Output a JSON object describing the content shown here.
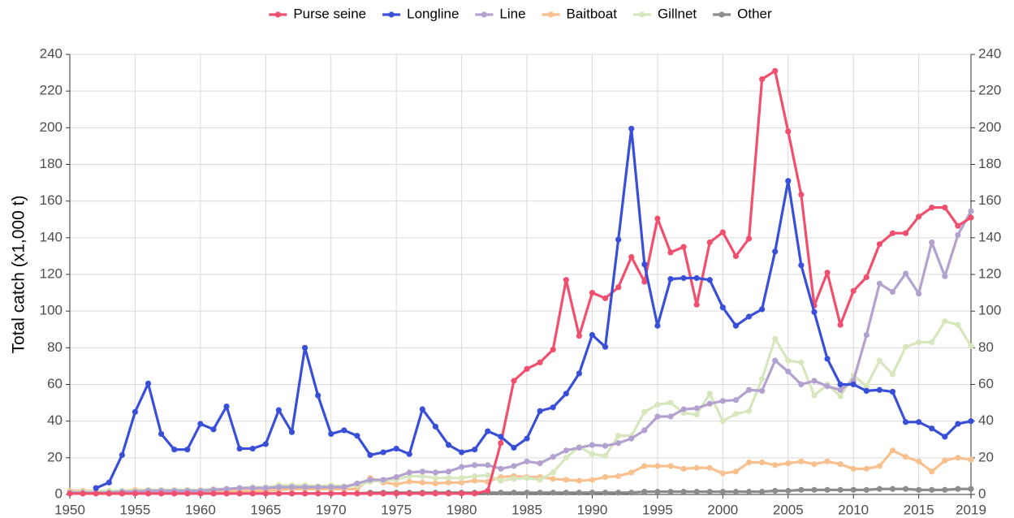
{
  "chart_data": {
    "type": "line",
    "y_label": "Total catch (x1,000 t)",
    "x": [
      1950,
      1951,
      1952,
      1953,
      1954,
      1955,
      1956,
      1957,
      1958,
      1959,
      1960,
      1961,
      1962,
      1963,
      1964,
      1965,
      1966,
      1967,
      1968,
      1969,
      1970,
      1971,
      1972,
      1973,
      1974,
      1975,
      1976,
      1977,
      1978,
      1979,
      1980,
      1981,
      1982,
      1983,
      1984,
      1985,
      1986,
      1987,
      1988,
      1989,
      1990,
      1991,
      1992,
      1993,
      1994,
      1995,
      1996,
      1997,
      1998,
      1999,
      2000,
      2001,
      2002,
      2003,
      2004,
      2005,
      2006,
      2007,
      2008,
      2009,
      2010,
      2011,
      2012,
      2013,
      2014,
      2015,
      2016,
      2017,
      2018,
      2019
    ],
    "series": [
      {
        "name": "Purse seine",
        "color": "#f0506e",
        "values": [
          0.5,
          0.5,
          0.5,
          0.5,
          0.5,
          0.5,
          0.5,
          0.5,
          0.5,
          0.5,
          0.5,
          0.5,
          0.5,
          0.5,
          0.5,
          0.5,
          0.5,
          0.5,
          0.5,
          0.5,
          0.5,
          0.5,
          0.5,
          0.5,
          0.5,
          0.5,
          0.5,
          0.5,
          0.5,
          0.5,
          0.5,
          0.5,
          2,
          28,
          62,
          68.5,
          72,
          79,
          117,
          86.5,
          110,
          107,
          113,
          129.5,
          116,
          150.5,
          132,
          135,
          103.5,
          137.5,
          143,
          130,
          139.5,
          226.5,
          231,
          198,
          163.5,
          103,
          121,
          92.5,
          111,
          118.5,
          136.5,
          142.5,
          142.5,
          151.5,
          156.5,
          156.5,
          146.5,
          151
        ]
      },
      {
        "name": "Longline",
        "color": "#3a4fd8",
        "values": [
          null,
          null,
          3.5,
          6.5,
          21.5,
          45,
          60.5,
          33,
          24.5,
          24.5,
          38.5,
          35.5,
          48,
          25,
          25,
          27.5,
          46,
          34,
          80,
          54,
          33,
          35,
          32,
          21.5,
          23,
          25,
          22,
          46.5,
          37,
          27,
          23,
          24.5,
          34.5,
          31.5,
          25.5,
          30.5,
          45.5,
          47.5,
          55,
          66,
          87,
          80.5,
          139,
          199.5,
          125.5,
          92,
          117.5,
          118,
          118,
          117,
          102,
          92,
          97,
          101,
          132.5,
          171,
          125,
          99.5,
          74,
          60,
          60,
          56.5,
          57,
          56,
          39.5,
          39.5,
          36,
          31.5,
          38.5,
          40
        ]
      },
      {
        "name": "Line",
        "color": "#b3a2cf",
        "values": [
          1,
          1,
          1,
          1,
          1.5,
          1.5,
          2,
          2,
          2,
          2,
          2,
          2.5,
          3,
          3.5,
          3.5,
          3.5,
          4,
          4,
          4,
          4,
          4,
          4,
          6,
          8,
          8,
          9.5,
          12,
          12.5,
          12,
          12.5,
          15,
          16,
          16,
          14,
          15.5,
          18,
          17,
          20.5,
          24,
          25.5,
          27,
          26.5,
          28,
          30.5,
          35,
          42.5,
          42.5,
          46.5,
          47,
          49.5,
          51,
          51.5,
          57,
          56.5,
          73,
          67,
          60,
          62,
          59,
          57,
          62,
          87,
          115,
          110.5,
          120.5,
          109.5,
          137.5,
          119,
          141.5,
          154.5
        ]
      },
      {
        "name": "Baitboat",
        "color": "#f8c08e",
        "values": [
          2,
          2,
          2,
          2,
          2,
          2.5,
          2.5,
          2.5,
          2.5,
          2.5,
          2,
          2,
          2,
          2,
          2,
          2,
          2.5,
          3,
          3,
          3,
          3,
          3,
          3,
          9,
          6.5,
          5.5,
          7,
          6.5,
          6,
          6.5,
          6.5,
          7.5,
          7,
          9.5,
          10,
          9.5,
          9.5,
          8.5,
          8,
          7.5,
          8,
          9.5,
          10,
          12,
          15.5,
          15.5,
          15.5,
          14,
          14.5,
          14.5,
          11.5,
          12.5,
          17.5,
          17.5,
          16,
          17,
          18,
          16.5,
          18,
          16.5,
          14,
          14,
          15.5,
          24,
          20.5,
          18,
          12.5,
          18.5,
          20,
          19
        ]
      },
      {
        "name": "Gillnet",
        "color": "#d6e7bd",
        "values": [
          1.5,
          1.5,
          2,
          2,
          2,
          2,
          2.5,
          2.5,
          2.5,
          2.5,
          2.5,
          3,
          3,
          3.5,
          4,
          4,
          5,
          5,
          5,
          4.5,
          5,
          4.5,
          5,
          7,
          7.5,
          8,
          10,
          10,
          9,
          9,
          9,
          10,
          10.5,
          7.5,
          8.5,
          9,
          8,
          12,
          20,
          26,
          22,
          21,
          32,
          32,
          45,
          49,
          50,
          44.5,
          43.5,
          55,
          40,
          44,
          45.5,
          63,
          85,
          73,
          72,
          54,
          60,
          53.5,
          65,
          59,
          73,
          65.5,
          80.5,
          83,
          83,
          94.5,
          92.5,
          81
        ]
      },
      {
        "name": "Other",
        "color": "#8c8c8c",
        "values": [
          0.5,
          0.5,
          0.5,
          0.5,
          0.5,
          0.5,
          0.5,
          0.5,
          0.5,
          0.5,
          0.5,
          0.5,
          0.5,
          0.5,
          0.5,
          0.5,
          0.5,
          0.5,
          0.5,
          0.5,
          0.5,
          0.5,
          0.5,
          1,
          1,
          1,
          1,
          1,
          1,
          1,
          1,
          1,
          1,
          1,
          1,
          1,
          1,
          1,
          1,
          1,
          1,
          1,
          1,
          1,
          1.5,
          1.5,
          1.5,
          1.5,
          1.5,
          1.5,
          1.5,
          1.5,
          1.5,
          1.5,
          2,
          2,
          2.5,
          2.5,
          2.5,
          2.5,
          2.5,
          2.5,
          3,
          3,
          3,
          2.5,
          2.5,
          2.5,
          3,
          3
        ]
      }
    ],
    "xlim": [
      1950,
      2019
    ],
    "xticks": [
      1950,
      1955,
      1960,
      1965,
      1970,
      1975,
      1980,
      1985,
      1990,
      1995,
      2000,
      2005,
      2010,
      2015,
      2019
    ],
    "ylim": [
      0,
      240
    ],
    "yticks": [
      0,
      20,
      40,
      60,
      80,
      100,
      120,
      140,
      160,
      180,
      200,
      220,
      240
    ],
    "y2lim": [
      0,
      240
    ],
    "y2ticks": [
      0,
      20,
      40,
      60,
      80,
      100,
      120,
      140,
      160,
      180,
      200,
      220,
      240
    ],
    "grid": true,
    "legend": "top"
  }
}
